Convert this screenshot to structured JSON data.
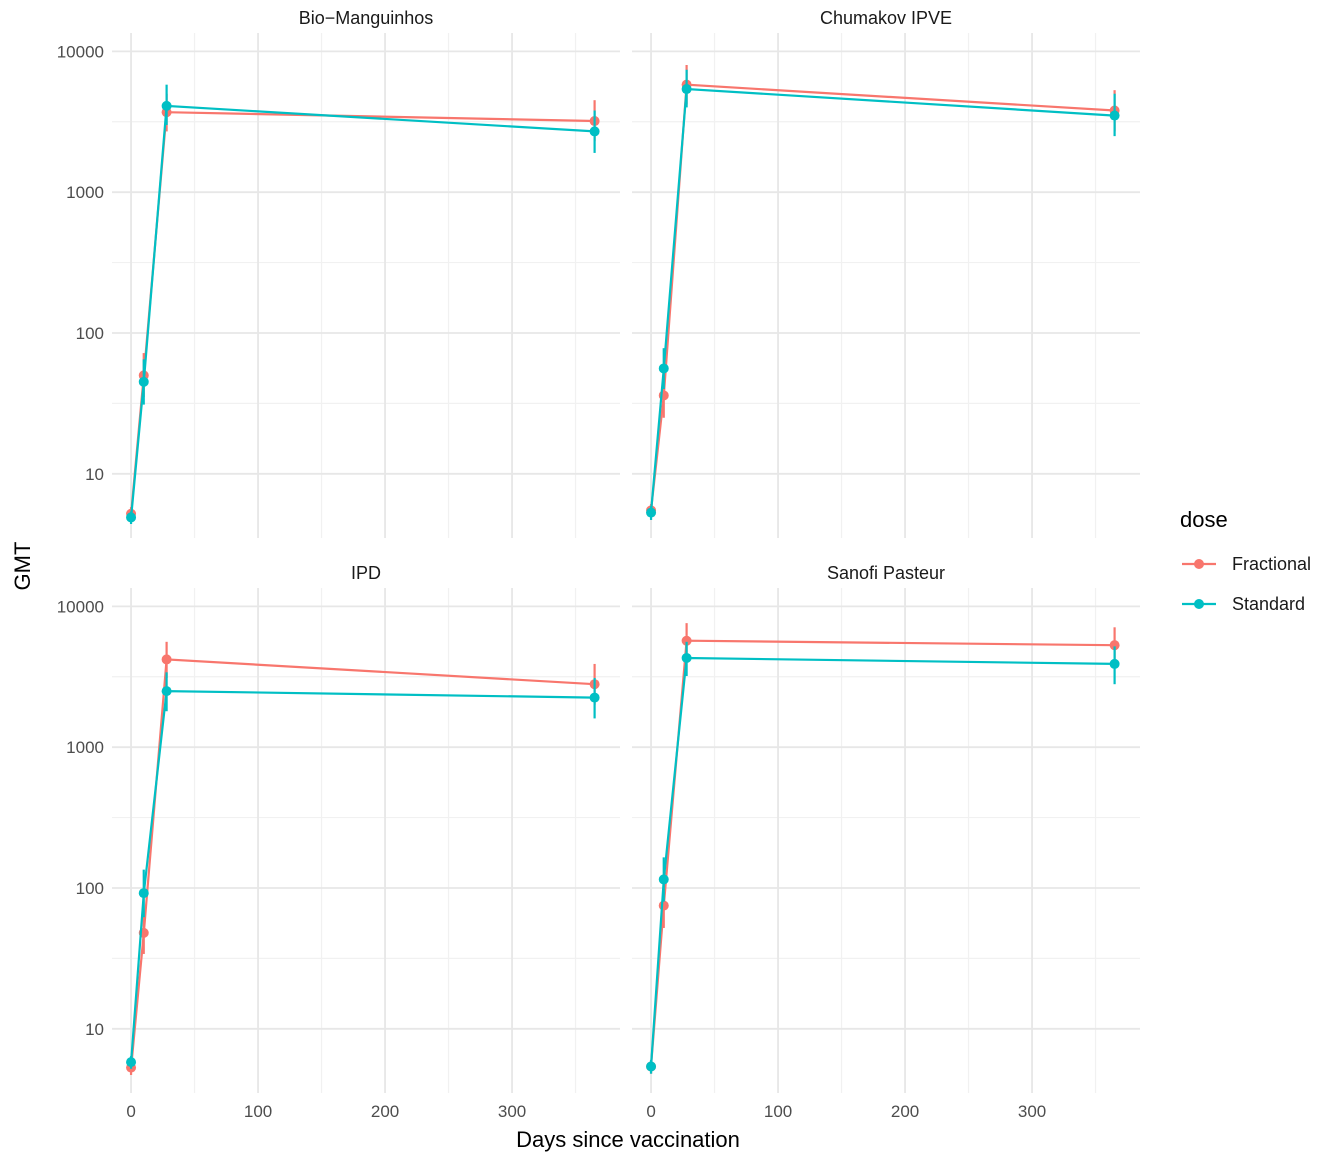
{
  "chart_data": {
    "type": "line",
    "xlabel": "Days since vaccination",
    "ylabel": "GMT",
    "yscale": "log10",
    "ylim": [
      3.5,
      13500
    ],
    "xlim": [
      -15,
      385
    ],
    "xticks": [
      0,
      100,
      200,
      300
    ],
    "xtick_labels": [
      "0",
      "100",
      "200",
      "300"
    ],
    "yticks": [
      10,
      100,
      1000,
      10000
    ],
    "ytick_labels": [
      "10",
      "100",
      "1000",
      "10000"
    ],
    "grid": true,
    "legend": {
      "title": "dose",
      "position": "right",
      "entries": [
        {
          "label": "Fractional",
          "color": "#F8766D"
        },
        {
          "label": "Standard",
          "color": "#00BFC4"
        }
      ]
    },
    "panels": [
      {
        "title": "Bio−Manguinhos",
        "series": [
          {
            "name": "Fractional",
            "color": "#F8766D",
            "x": [
              0,
              10,
              28,
              365
            ],
            "y": [
              5.2,
              50,
              3700,
              3200
            ],
            "lower": [
              4.6,
              35,
              2700,
              2300
            ],
            "upper": [
              5.8,
              72,
              5000,
              4500
            ]
          },
          {
            "name": "Standard",
            "color": "#00BFC4",
            "x": [
              0,
              10,
              28,
              365
            ],
            "y": [
              4.9,
              45,
              4100,
              2700
            ],
            "lower": [
              4.4,
              31,
              3000,
              1900
            ],
            "upper": [
              5.4,
              65,
              5800,
              3800
            ]
          }
        ]
      },
      {
        "title": "Chumakov IPVE",
        "series": [
          {
            "name": "Fractional",
            "color": "#F8766D",
            "x": [
              0,
              10,
              28,
              365
            ],
            "y": [
              5.5,
              36,
              5800,
              3800
            ],
            "lower": [
              4.9,
              25,
              4200,
              2700
            ],
            "upper": [
              6.1,
              52,
              8000,
              5300
            ]
          },
          {
            "name": "Standard",
            "color": "#00BFC4",
            "x": [
              0,
              10,
              28,
              365
            ],
            "y": [
              5.3,
              56,
              5400,
              3500
            ],
            "lower": [
              4.7,
              40,
              4000,
              2500
            ],
            "upper": [
              5.9,
              78,
              7400,
              5000
            ]
          }
        ]
      },
      {
        "title": "IPD",
        "series": [
          {
            "name": "Fractional",
            "color": "#F8766D",
            "x": [
              0,
              10,
              28,
              365
            ],
            "y": [
              5.3,
              48,
              4200,
              2800
            ],
            "lower": [
              4.7,
              34,
              3100,
              2000
            ],
            "upper": [
              5.9,
              68,
              5600,
              3900
            ]
          },
          {
            "name": "Standard",
            "color": "#00BFC4",
            "x": [
              0,
              10,
              28,
              365
            ],
            "y": [
              5.8,
              92,
              2500,
              2250
            ],
            "lower": [
              5.2,
              62,
              1800,
              1600
            ],
            "upper": [
              6.4,
              135,
              3400,
              3100
            ]
          }
        ]
      },
      {
        "title": "Sanofi Pasteur",
        "series": [
          {
            "name": "Fractional",
            "color": "#F8766D",
            "x": [
              0,
              10,
              28,
              365
            ],
            "y": [
              5.4,
              75,
              5700,
              5300
            ],
            "lower": [
              4.8,
              52,
              4200,
              3900
            ],
            "upper": [
              6.0,
              108,
              7600,
              7100
            ]
          },
          {
            "name": "Standard",
            "color": "#00BFC4",
            "x": [
              0,
              10,
              28,
              365
            ],
            "y": [
              5.4,
              115,
              4300,
              3900
            ],
            "lower": [
              4.8,
              80,
              3200,
              2800
            ],
            "upper": [
              6.0,
              165,
              5600,
              5200
            ]
          }
        ]
      }
    ]
  }
}
